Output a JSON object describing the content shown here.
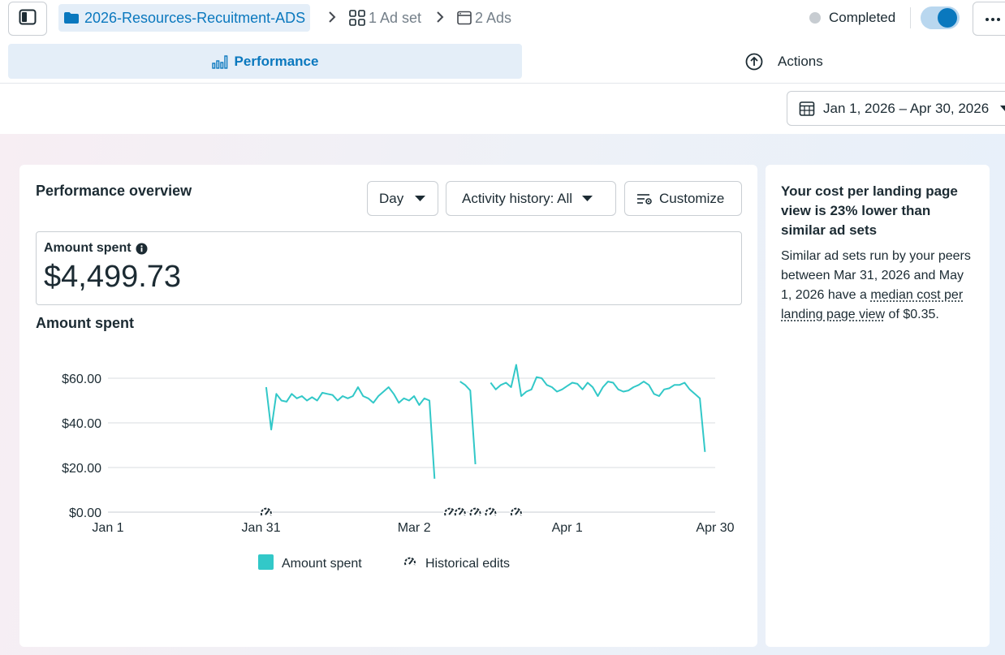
{
  "breadcrumb": {
    "campaign": "2026-Resources-Recuitment-ADS",
    "ad_set": "1 Ad set",
    "ads": "2 Ads"
  },
  "status": {
    "label": "Completed",
    "toggle_on": true
  },
  "tabs": {
    "performance": "Performance",
    "actions": "Actions"
  },
  "date_range": "Jan 1, 2026 – Apr 30, 2026",
  "overview": {
    "title": "Performance overview",
    "granularity": "Day",
    "activity_history": "Activity history: All",
    "customize": "Customize",
    "metric_label": "Amount spent",
    "metric_value": "$4,499.73",
    "chart_title": "Amount spent"
  },
  "insight": {
    "title": "Your cost per landing page view is 23% lower than similar ad sets",
    "body_prefix": "Similar ad sets run by your peers between Mar 31, 2026 and May 1, 2026 have a ",
    "body_link": "median cost per landing page view",
    "body_suffix": " of $0.35."
  },
  "colors": {
    "accent": "#0a78be",
    "series": "#32c8c8"
  },
  "chart_data": {
    "type": "line",
    "title": "Amount spent",
    "xlabel": "",
    "ylabel": "",
    "ylim": [
      0,
      60
    ],
    "y_ticks": [
      0,
      20,
      40,
      60
    ],
    "y_tick_labels": [
      "$0.00",
      "$20.00",
      "$40.00",
      "$60.00"
    ],
    "x_range": [
      1,
      120
    ],
    "x_ticks": [
      1,
      31,
      61,
      91,
      120
    ],
    "x_tick_labels": [
      "Jan 1",
      "Jan 31",
      "Mar 2",
      "Apr 1",
      "Apr 30"
    ],
    "grid": true,
    "legend_position": "bottom-center",
    "series": [
      {
        "name": "Amount spent",
        "segments": [
          {
            "x": [
              32,
              33,
              34,
              35,
              36,
              37,
              38,
              39,
              40,
              41,
              42,
              43,
              44,
              45,
              46,
              47,
              48,
              49,
              50,
              51,
              52,
              53,
              54,
              55,
              56,
              57,
              58,
              59,
              60,
              61,
              62,
              63,
              64,
              65,
              66,
              67,
              68,
              69
            ],
            "y": [
              56,
              37,
              53,
              50,
              49.5,
              53,
              51,
              52,
              50,
              51.5,
              50,
              53.5,
              53,
              52.5,
              50,
              52,
              51,
              52,
              56,
              52,
              51,
              49,
              52,
              54,
              56,
              53,
              49,
              51,
              50,
              52,
              48,
              51,
              50,
              15,
              null,
              null,
              null,
              null
            ]
          },
          {
            "x": [
              70,
              71,
              72,
              73
            ],
            "y": [
              58.5,
              57,
              54.5,
              21.5
            ]
          },
          {
            "x": [
              76,
              77,
              78,
              79,
              80,
              81,
              82,
              83,
              84,
              85,
              86,
              87,
              88,
              89,
              90,
              91,
              92,
              93,
              94,
              95,
              96,
              97,
              98,
              99,
              100,
              101,
              102,
              103,
              104,
              105,
              106,
              107,
              108,
              109,
              110,
              111,
              112,
              113,
              114,
              115,
              116,
              117,
              118,
              119,
              120
            ],
            "y": [
              58,
              55,
              57,
              58,
              56,
              66,
              52,
              54,
              55,
              60.5,
              60,
              57,
              56,
              54,
              55,
              56.5,
              58,
              57.5,
              55,
              58,
              56,
              52,
              56,
              58.5,
              58,
              55,
              54,
              54.5,
              56,
              57,
              58.5,
              57,
              53,
              52,
              55,
              55.5,
              57,
              57,
              58,
              55,
              53,
              51,
              27,
              null,
              null
            ]
          }
        ]
      }
    ],
    "edit_markers_x": [
      32,
      68,
      70,
      73,
      76,
      81
    ]
  },
  "legend": {
    "series": "Amount spent",
    "edits": "Historical edits"
  }
}
